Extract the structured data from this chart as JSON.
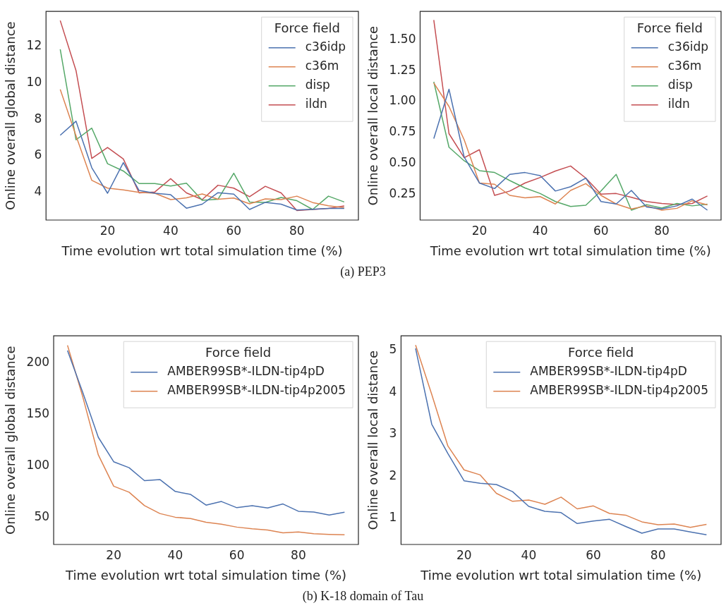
{
  "chart_data": [
    {
      "type": "line",
      "xlabel": "Time evolution wrt total simulation time (%)",
      "ylabel": "Online overall global distance",
      "legend_title": "Force field",
      "legend": "top right",
      "annotations": [
        "(a)  PEP3"
      ],
      "x": [
        5,
        10,
        15,
        20,
        25,
        30,
        35,
        40,
        45,
        50,
        55,
        60,
        65,
        70,
        75,
        80,
        85,
        90,
        95
      ],
      "xlim": [
        0.5,
        99.5
      ],
      "xticks": [
        20,
        40,
        60,
        80
      ],
      "ylim": [
        2.48,
        13.92
      ],
      "yticks": [
        4,
        6,
        8,
        10,
        12
      ],
      "series": [
        {
          "name": "c36idp",
          "color": "#4c72b0",
          "values": [
            7.13,
            7.9,
            5.35,
            3.95,
            5.63,
            4.1,
            3.95,
            3.87,
            3.13,
            3.35,
            3.98,
            3.9,
            3.06,
            3.45,
            3.35,
            3.03,
            3.07,
            3.12,
            3.12
          ]
        },
        {
          "name": "c36m",
          "color": "#dd8452",
          "values": [
            9.64,
            7.1,
            4.66,
            4.23,
            4.13,
            4.0,
            3.95,
            3.6,
            3.7,
            3.91,
            3.62,
            3.69,
            3.37,
            3.64,
            3.6,
            3.79,
            3.44,
            3.26,
            3.16
          ]
        },
        {
          "name": "disp",
          "color": "#55a868",
          "values": [
            11.84,
            6.88,
            7.52,
            5.57,
            5.17,
            4.48,
            4.48,
            4.35,
            4.5,
            3.56,
            3.62,
            5.05,
            3.47,
            3.45,
            3.72,
            3.54,
            3.06,
            3.79,
            3.47
          ]
        },
        {
          "name": "ildn",
          "color": "#c44e52",
          "values": [
            13.42,
            10.68,
            5.86,
            6.46,
            5.83,
            3.97,
            4.02,
            4.75,
            3.97,
            3.6,
            4.39,
            4.23,
            3.76,
            4.33,
            3.97,
            3.0,
            3.06,
            3.12,
            3.25
          ]
        }
      ]
    },
    {
      "type": "line",
      "xlabel": "Time evolution wrt total simulation time (%)",
      "ylabel": "Online overall local distance",
      "legend_title": "Force field",
      "legend": "top right",
      "x": [
        5,
        10,
        15,
        20,
        25,
        30,
        35,
        40,
        45,
        50,
        55,
        60,
        65,
        70,
        75,
        80,
        85,
        90,
        95
      ],
      "xlim": [
        0.5,
        99.5
      ],
      "xticks": [
        20,
        40,
        60,
        80
      ],
      "ylim": [
        0.04,
        1.73
      ],
      "yticks": [
        {
          "value": 0.25,
          "label": "0.25"
        },
        {
          "value": 0.5,
          "label": "0.50"
        },
        {
          "value": 0.75,
          "label": "0.75"
        },
        {
          "value": 1,
          "label": "1.00"
        },
        {
          "value": 1.25,
          "label": "1.25"
        },
        {
          "value": 1.5,
          "label": "1.50"
        }
      ],
      "series": [
        {
          "name": "c36idp",
          "color": "#4c72b0",
          "values": [
            0.7,
            1.1,
            0.55,
            0.34,
            0.295,
            0.41,
            0.425,
            0.4,
            0.275,
            0.31,
            0.38,
            0.19,
            0.17,
            0.28,
            0.146,
            0.13,
            0.155,
            0.21,
            0.12
          ]
        },
        {
          "name": "c36m",
          "color": "#dd8452",
          "values": [
            1.15,
            0.96,
            0.69,
            0.34,
            0.33,
            0.24,
            0.22,
            0.23,
            0.17,
            0.28,
            0.335,
            0.24,
            0.17,
            0.13,
            0.155,
            0.12,
            0.135,
            0.196,
            0.163
          ]
        },
        {
          "name": "disp",
          "color": "#55a868",
          "values": [
            1.16,
            0.63,
            0.52,
            0.44,
            0.425,
            0.36,
            0.3,
            0.255,
            0.19,
            0.15,
            0.16,
            0.276,
            0.41,
            0.12,
            0.165,
            0.137,
            0.174,
            0.155,
            0.168
          ]
        },
        {
          "name": "ildn",
          "color": "#c44e52",
          "values": [
            1.66,
            0.74,
            0.545,
            0.61,
            0.24,
            0.275,
            0.34,
            0.385,
            0.437,
            0.478,
            0.38,
            0.25,
            0.255,
            0.224,
            0.19,
            0.174,
            0.165,
            0.174,
            0.235
          ]
        }
      ]
    },
    {
      "type": "line",
      "xlabel": "Time evolution wrt total simulation time (%)",
      "ylabel": "Online overall global distance",
      "legend_title": "Force field",
      "legend": "top right",
      "annotations": [
        "(b)  K-18 domain of Tau"
      ],
      "x": [
        5,
        10,
        15,
        20,
        25,
        30,
        35,
        40,
        45,
        50,
        55,
        60,
        65,
        70,
        75,
        80,
        85,
        90,
        95
      ],
      "xlim": [
        0.5,
        99.5
      ],
      "xticks": [
        20,
        40,
        60,
        80
      ],
      "ylim": [
        23.5,
        226.5
      ],
      "yticks": [
        50,
        100,
        150,
        200
      ],
      "series": [
        {
          "name": "AMBER99SB*-ILDN-tip4pD",
          "color": "#4c72b0",
          "values": [
            212.2,
            171,
            127.8,
            104,
            98.2,
            85.6,
            86.7,
            75.1,
            72.2,
            61.8,
            65.3,
            59.3,
            61.3,
            59,
            62.9,
            55.8,
            55.1,
            52.2,
            54.9
          ]
        },
        {
          "name": "AMBER99SB*-ILDN-tip4p2005",
          "color": "#dd8452",
          "values": [
            217.3,
            166.7,
            110.7,
            80.2,
            74.4,
            61.3,
            53.6,
            50,
            48.7,
            45.1,
            43.3,
            40.4,
            38.7,
            37.6,
            34.9,
            35.6,
            34,
            33.3,
            32.9
          ]
        }
      ]
    },
    {
      "type": "line",
      "xlabel": "Time evolution wrt total simulation time (%)",
      "ylabel": "Online overall local distance",
      "legend_title": "Force field",
      "legend": "top right",
      "x": [
        5,
        10,
        15,
        20,
        25,
        30,
        35,
        40,
        45,
        50,
        55,
        60,
        65,
        70,
        75,
        80,
        85,
        90,
        95
      ],
      "xlim": [
        0.5,
        99.5
      ],
      "xticks": [
        20,
        40,
        60,
        80
      ],
      "ylim": [
        0.37,
        5.35
      ],
      "yticks": [
        1,
        2,
        3,
        4,
        5
      ],
      "series": [
        {
          "name": "AMBER99SB*-ILDN-tip4pD",
          "color": "#4c72b0",
          "values": [
            5.05,
            3.24,
            2.54,
            1.89,
            1.83,
            1.8,
            1.63,
            1.28,
            1.16,
            1.13,
            0.87,
            0.93,
            0.97,
            0.8,
            0.64,
            0.74,
            0.74,
            0.67,
            0.6
          ]
        },
        {
          "name": "AMBER99SB*-ILDN-tip4p2005",
          "color": "#dd8452",
          "values": [
            5.13,
            3.95,
            2.72,
            2.15,
            2.03,
            1.59,
            1.4,
            1.43,
            1.33,
            1.5,
            1.22,
            1.29,
            1.11,
            1.07,
            0.91,
            0.84,
            0.86,
            0.78,
            0.85
          ]
        }
      ]
    }
  ]
}
